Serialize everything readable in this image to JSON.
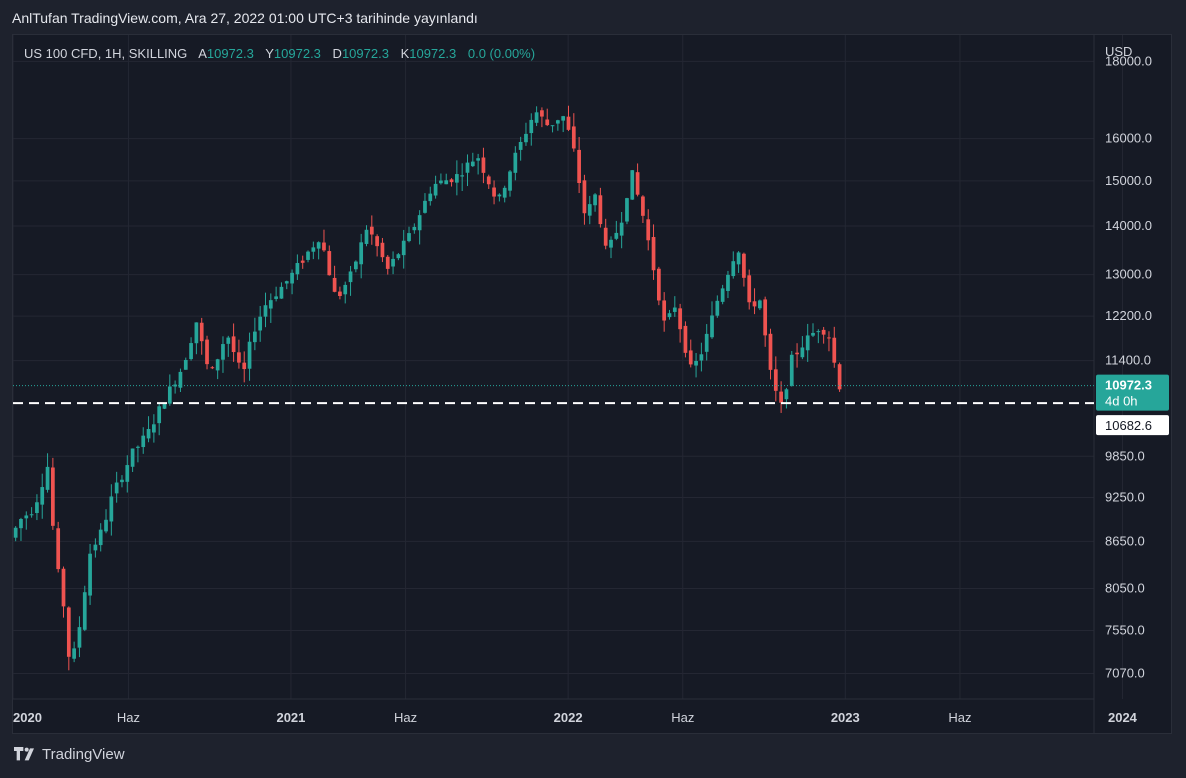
{
  "header": {
    "publish_line": "AnlTufan TradingView.com, Ara 27, 2022 01:00 UTC+3 tarihinde yayınlandı"
  },
  "legend": {
    "symbol": "US 100 CFD, 1H, SKILLING",
    "o_label": "A",
    "o_value": "10972.3",
    "h_label": "Y",
    "h_value": "10972.3",
    "l_label": "D",
    "l_value": "10972.3",
    "c_label": "K",
    "c_value": "10972.3",
    "change": "0.0 (0.00%)"
  },
  "footer": {
    "brand": "TradingView",
    "logo_icon": "tradingview-logo-icon"
  },
  "colors": {
    "up": "#26a69a",
    "down": "#ef5350",
    "background": "#161a25",
    "grid": "#242733",
    "axis_text": "#d1d4dc",
    "price_tag": "#26a69a"
  },
  "chart_data": {
    "type": "candlestick",
    "title": "US 100 CFD, 1H, SKILLING",
    "currency": "USD",
    "y_scale": "log",
    "ylim": [
      6800,
      19500
    ],
    "xlim": [
      "2020-01-01",
      "2024-02-01"
    ],
    "y_ticks": [
      "7070.0",
      "7550.0",
      "8050.0",
      "8650.0",
      "9250.0",
      "9850.0",
      "11400.0",
      "12200.0",
      "13000.0",
      "14000.0",
      "15000.0",
      "16000.0",
      "18000.0"
    ],
    "x_ticks": [
      {
        "date": "2020-01-01",
        "label": "2020"
      },
      {
        "date": "2020-06-01",
        "label": "Haz"
      },
      {
        "date": "2021-01-01",
        "label": "2021"
      },
      {
        "date": "2021-06-01",
        "label": "Haz"
      },
      {
        "date": "2022-01-01",
        "label": "2022"
      },
      {
        "date": "2022-06-01",
        "label": "Haz"
      },
      {
        "date": "2023-01-01",
        "label": "2023"
      },
      {
        "date": "2023-06-01",
        "label": "Haz"
      },
      {
        "date": "2024-01-01",
        "label": "2024"
      }
    ],
    "last_price": {
      "value": 10972.3,
      "label": "10972.3",
      "countdown": "4d 0h"
    },
    "horizontal_line": {
      "value": 10682.6,
      "label": "10682.6"
    },
    "path_points": [
      [
        "2020-01-01",
        8700
      ],
      [
        "2020-01-15",
        8950
      ],
      [
        "2020-02-01",
        9100
      ],
      [
        "2020-02-19",
        9700
      ],
      [
        "2020-03-01",
        8400
      ],
      [
        "2020-03-12",
        7800
      ],
      [
        "2020-03-20",
        7100
      ],
      [
        "2020-04-01",
        7600
      ],
      [
        "2020-04-15",
        8500
      ],
      [
        "2020-05-01",
        8800
      ],
      [
        "2020-05-15",
        9300
      ],
      [
        "2020-06-10",
        9900
      ],
      [
        "2020-06-30",
        10200
      ],
      [
        "2020-07-20",
        10700
      ],
      [
        "2020-08-15",
        11300
      ],
      [
        "2020-09-02",
        12100
      ],
      [
        "2020-09-20",
        11100
      ],
      [
        "2020-10-12",
        11900
      ],
      [
        "2020-11-02",
        11100
      ],
      [
        "2020-11-15",
        11900
      ],
      [
        "2020-12-01",
        12400
      ],
      [
        "2021-01-01",
        12900
      ],
      [
        "2021-02-12",
        13800
      ],
      [
        "2021-03-05",
        12500
      ],
      [
        "2021-03-25",
        13000
      ],
      [
        "2021-04-15",
        14000
      ],
      [
        "2021-05-12",
        13100
      ],
      [
        "2021-06-10",
        13800
      ],
      [
        "2021-07-10",
        14900
      ],
      [
        "2021-08-10",
        15100
      ],
      [
        "2021-09-07",
        15600
      ],
      [
        "2021-10-04",
        14500
      ],
      [
        "2021-10-25",
        15500
      ],
      [
        "2021-11-22",
        16700
      ],
      [
        "2021-12-10",
        16300
      ],
      [
        "2021-12-28",
        16600
      ],
      [
        "2022-01-10",
        15900
      ],
      [
        "2022-01-27",
        14200
      ],
      [
        "2022-02-10",
        14700
      ],
      [
        "2022-02-24",
        13400
      ],
      [
        "2022-03-15",
        14100
      ],
      [
        "2022-03-29",
        15200
      ],
      [
        "2022-04-15",
        14100
      ],
      [
        "2022-05-12",
        12000
      ],
      [
        "2022-05-25",
        12400
      ],
      [
        "2022-06-16",
        11200
      ],
      [
        "2022-07-01",
        11600
      ],
      [
        "2022-07-20",
        12500
      ],
      [
        "2022-08-16",
        13600
      ],
      [
        "2022-09-01",
        12300
      ],
      [
        "2022-09-13",
        12600
      ],
      [
        "2022-09-30",
        11000
      ],
      [
        "2022-10-13",
        10600
      ],
      [
        "2022-10-25",
        11400
      ],
      [
        "2022-11-10",
        11700
      ],
      [
        "2022-12-01",
        12000
      ],
      [
        "2022-12-13",
        11900
      ],
      [
        "2022-12-27",
        10972.3
      ]
    ]
  }
}
